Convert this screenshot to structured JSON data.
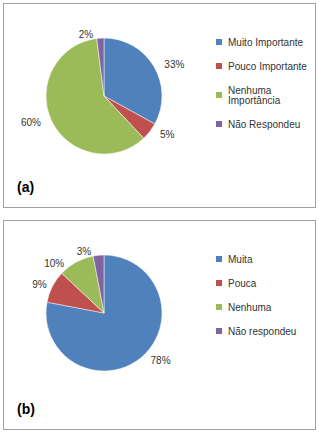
{
  "chart_data": [
    {
      "type": "pie",
      "title": "(a)",
      "categories": [
        "Muito Importante",
        "Pouco Importante",
        "Nenhuma Importância",
        "Não Respondeu"
      ],
      "values": [
        33,
        5,
        60,
        2
      ],
      "value_labels": [
        "33%",
        "5%",
        "60%",
        "2%"
      ],
      "colors": [
        "#4f81bd",
        "#c0504d",
        "#9bbb59",
        "#8064a2"
      ],
      "data_labels": true,
      "legend": "right"
    },
    {
      "type": "pie",
      "title": "(b)",
      "categories": [
        "Muita",
        "Pouca",
        "Nenhuma",
        "Não respondeu"
      ],
      "values": [
        78,
        9,
        10,
        3
      ],
      "value_labels": [
        "78%",
        "9%",
        "10%",
        "3%"
      ],
      "colors": [
        "#4f81bd",
        "#c0504d",
        "#9bbb59",
        "#8064a2"
      ],
      "data_labels": true,
      "legend": "right"
    }
  ]
}
